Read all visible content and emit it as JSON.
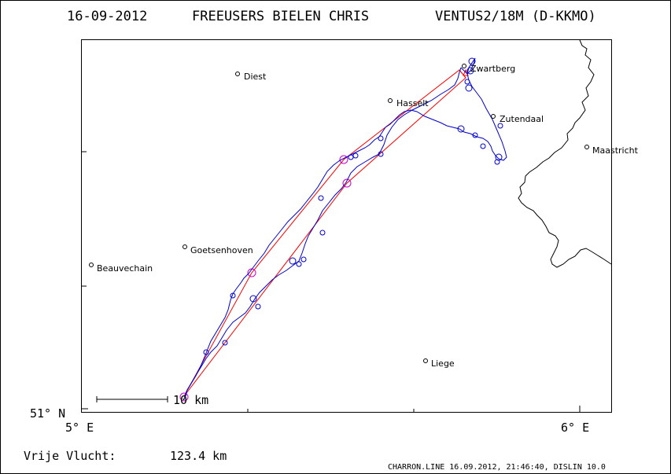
{
  "header": {
    "date": "16-09-2012",
    "club_pilot": "FREEUSERS BIELEN CHRIS",
    "glider": "VENTUS2/18M (D-KKMO)"
  },
  "axes": {
    "y_label": "51° N",
    "x_left_label": "5° E",
    "x_right_label": "6° E"
  },
  "towns": [
    {
      "name": "Diest"
    },
    {
      "name": "Hasselt"
    },
    {
      "name": "Zwartberg"
    },
    {
      "name": "Zutendaal"
    },
    {
      "name": "Maastricht"
    },
    {
      "name": "Goetsenhoven"
    },
    {
      "name": "Beauvechain"
    },
    {
      "name": "Liege"
    }
  ],
  "scale": {
    "label": "10 km"
  },
  "result": {
    "label": "Vrije Vlucht:",
    "value": "123.4 km"
  },
  "footer": {
    "text": "CHARRON.LINE 16.09.2012, 21:46:40, DISLIN 10.0"
  },
  "colors": {
    "track": "#0000cc",
    "task": "#ff0000",
    "turnpoint": "#cc00cc",
    "border": "#000000"
  }
}
